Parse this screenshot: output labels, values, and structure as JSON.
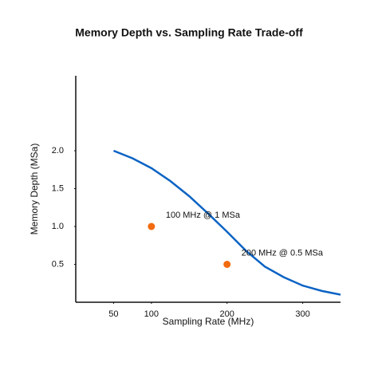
{
  "chart_data": {
    "type": "line",
    "title": "Memory Depth vs. Sampling Rate Trade-off",
    "xlabel": "Sampling Rate (MHz)",
    "ylabel": "Memory Depth (MSa)",
    "xlim": [
      0,
      350
    ],
    "ylim": [
      0,
      3
    ],
    "xticks": [
      50,
      100,
      200,
      300
    ],
    "yticks": [
      0.5,
      {
        "value": 1,
        "label": "1.0"
      },
      1.5,
      {
        "value": 2,
        "label": "2.0"
      }
    ],
    "grid": false,
    "curve": {
      "color": "#0b63c4",
      "x": [
        50,
        75,
        100,
        125,
        150,
        175,
        200,
        225,
        250,
        275,
        300,
        325,
        350
      ],
      "values": [
        2.0,
        1.9,
        1.77,
        1.6,
        1.4,
        1.17,
        0.93,
        0.68,
        0.47,
        0.33,
        0.22,
        0.15,
        0.1
      ]
    },
    "points": {
      "color": "#f26b0f",
      "x": [
        100,
        200
      ],
      "values": [
        1,
        0.5
      ],
      "annotations": [
        "100 MHz @ 1 MSa",
        "200 MHz @ 0.5 MSa"
      ]
    }
  }
}
